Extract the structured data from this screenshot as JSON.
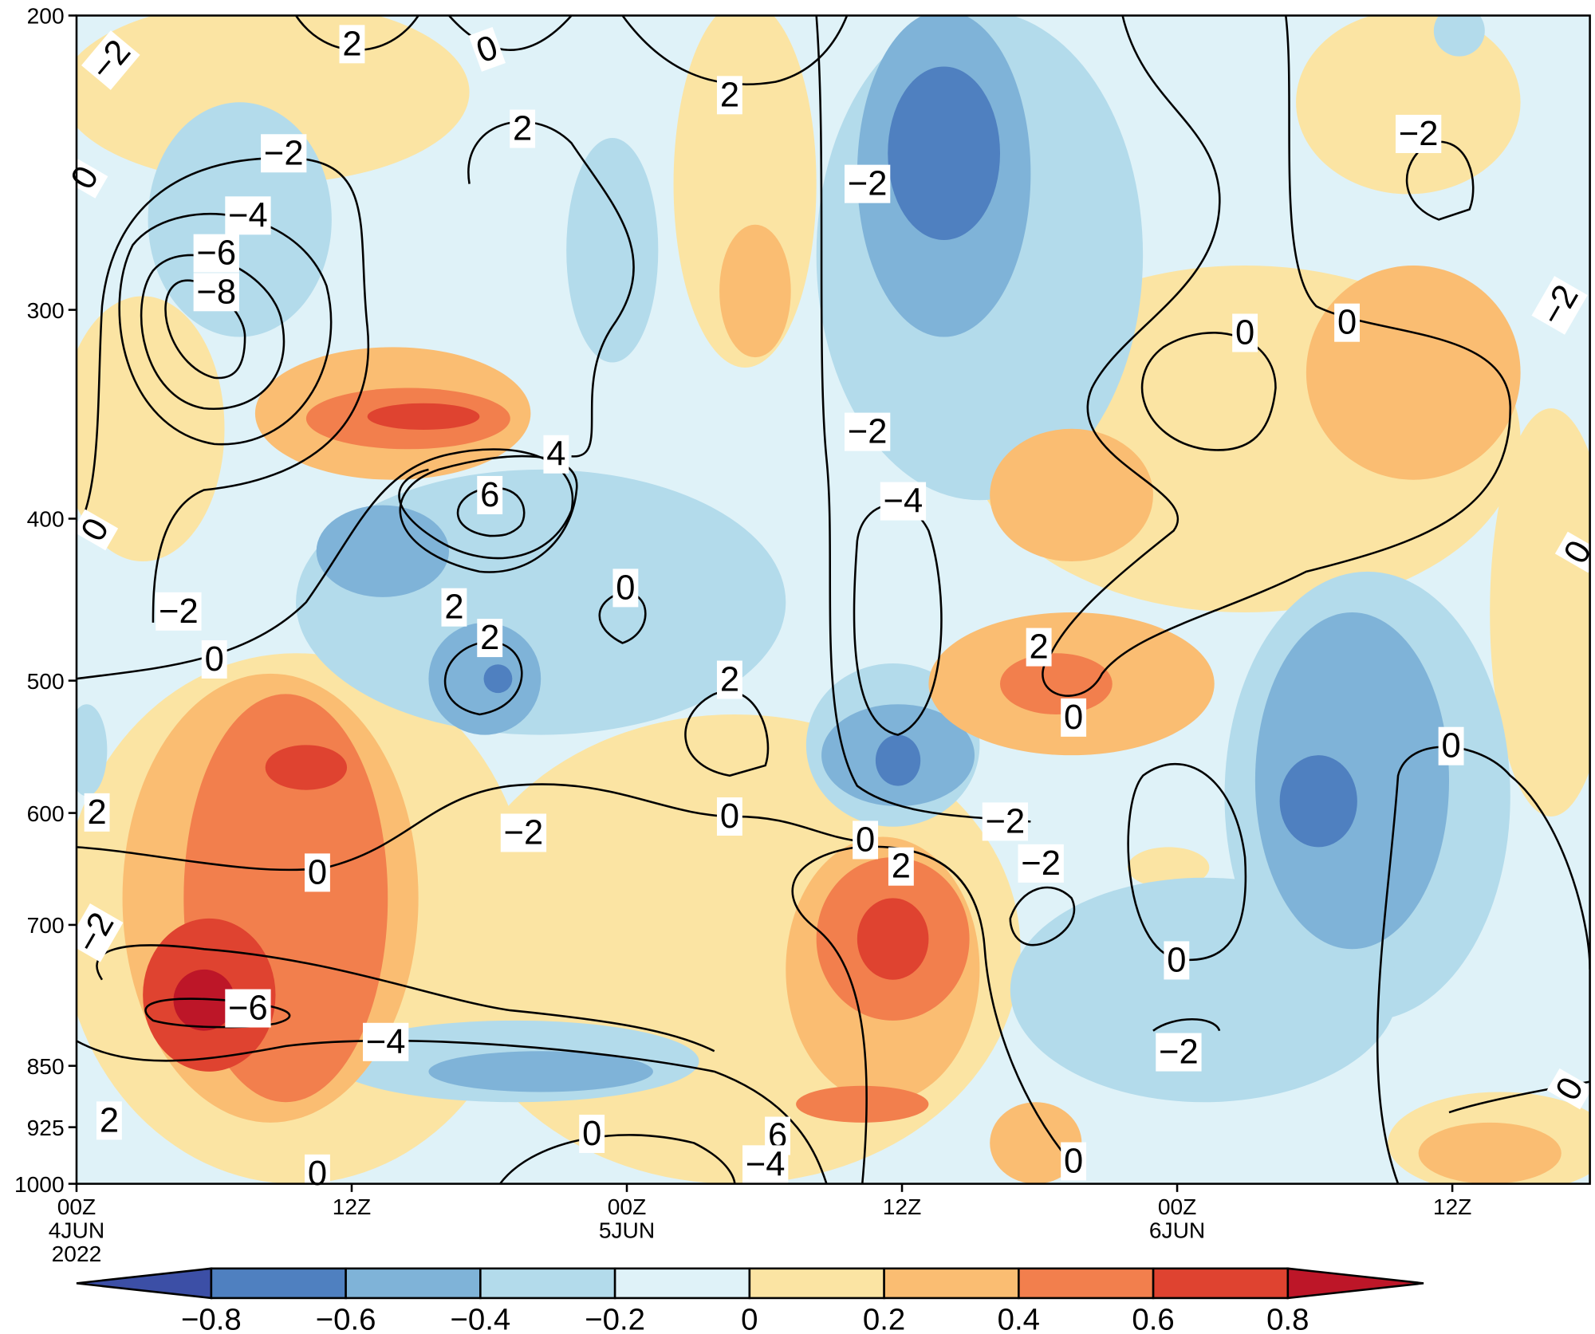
{
  "chart_data": {
    "type": "contour",
    "log_scale": true,
    "xlim": [
      0,
      66
    ],
    "xticks": [
      {
        "value": 0,
        "label": "00Z\n4JUN\n2022"
      },
      {
        "value": 12,
        "label": "12Z"
      },
      {
        "value": 24,
        "label": "00Z\n5JUN"
      },
      {
        "value": 36,
        "label": "12Z"
      },
      {
        "value": 48,
        "label": "00Z\n6JUN"
      },
      {
        "value": 60,
        "label": "12Z"
      }
    ],
    "ylim": [
      1000,
      200
    ],
    "yticks": [
      200,
      300,
      400,
      500,
      600,
      700,
      850,
      925,
      1000
    ],
    "colorbar": {
      "levels": [
        {
          "value": -0.8,
          "label": "−0.8"
        },
        {
          "value": -0.6,
          "label": "−0.6"
        },
        {
          "value": -0.4,
          "label": "−0.4"
        },
        {
          "value": -0.2,
          "label": "−0.2"
        },
        0,
        0.2,
        0.4,
        0.6,
        0.8
      ],
      "colors": [
        "#3c4fa6",
        "#4f80c0",
        "#7fb3d8",
        "#b3dbeb",
        "#dff2f8",
        "#fbe4a3",
        "#fabd72",
        "#f27f4d",
        "#df4330",
        "#bd1628"
      ]
    },
    "contour_labels": [
      {
        "value": -2,
        "label": "−2"
      },
      2,
      0,
      2,
      2,
      {
        "value": -2,
        "label": "−2"
      },
      {
        "value": -2,
        "label": "−2"
      },
      {
        "value": -4,
        "label": "−4"
      },
      {
        "value": -6,
        "label": "−6"
      },
      {
        "value": -8,
        "label": "−8"
      },
      {
        "value": -2,
        "label": "−2"
      },
      0,
      {
        "value": -2,
        "label": "−2"
      },
      0,
      0,
      {
        "value": -2,
        "label": "−2"
      },
      4,
      6,
      {
        "value": -4,
        "label": "−4"
      },
      0,
      0,
      0,
      2,
      {
        "value": -2,
        "label": "−2"
      },
      2,
      0,
      2,
      2,
      0,
      0,
      2,
      0,
      {
        "value": -2,
        "label": "−2"
      },
      {
        "value": -2,
        "label": "−2"
      },
      0,
      {
        "value": -2,
        "label": "−2"
      },
      2,
      0,
      {
        "value": -2,
        "label": "−2"
      },
      0,
      {
        "value": -6,
        "label": "−6"
      },
      {
        "value": -4,
        "label": "−4"
      },
      {
        "value": -2,
        "label": "−2"
      },
      0,
      2,
      0,
      6,
      {
        "value": -4,
        "label": "−4"
      },
      0,
      0
    ]
  }
}
